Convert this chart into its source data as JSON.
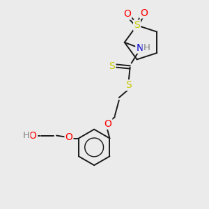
{
  "bg_color": "#ebebeb",
  "atom_colors": {
    "C": "#000000",
    "S": "#c8c800",
    "O": "#ff0000",
    "N": "#0000cd",
    "H": "#808080"
  },
  "bond_color": "#1a1a1a",
  "line_width": 1.4,
  "fig_size": [
    3.0,
    3.0
  ],
  "dpi": 100
}
